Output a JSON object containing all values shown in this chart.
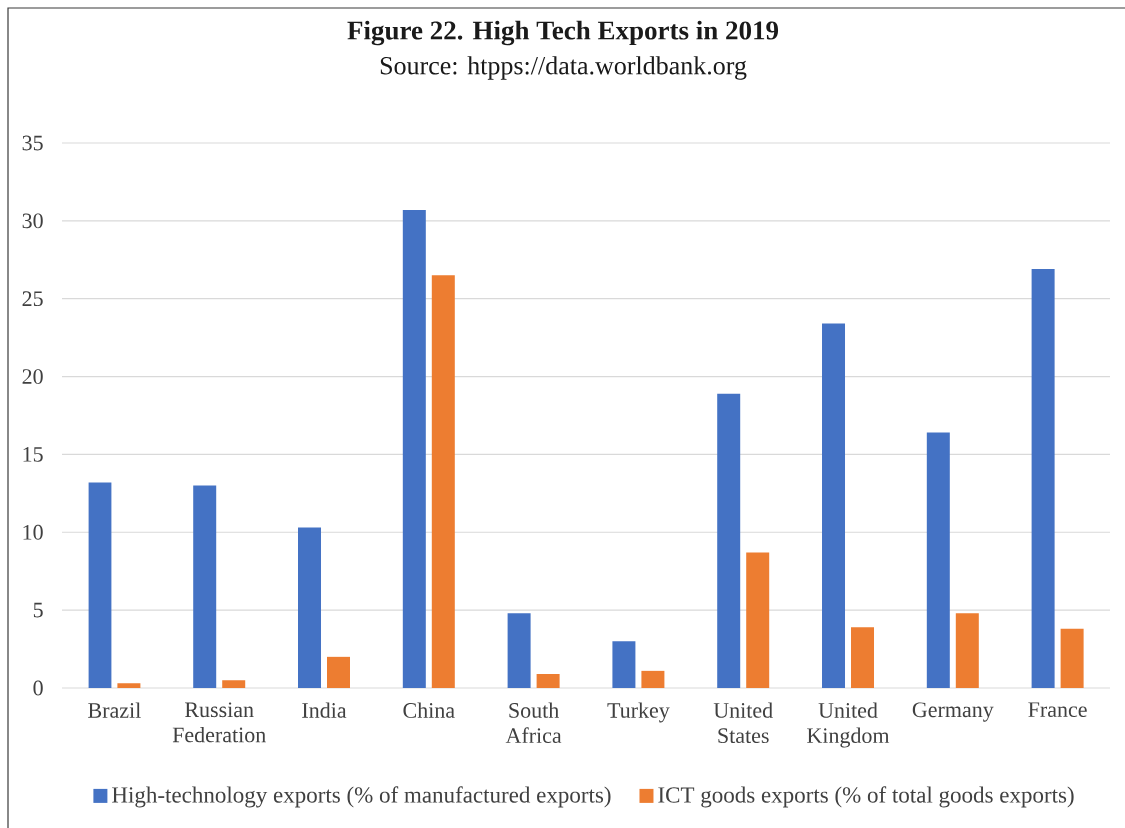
{
  "chart_data": {
    "type": "bar",
    "title": "Figure 22. High Tech Exports in 2019",
    "annotations": [
      "Source: htpps://data.worldbank.org"
    ],
    "categories": [
      "Brazil",
      "Russian Federation",
      "India",
      "China",
      "South Africa",
      "Turkey",
      "United States",
      "United Kingdom",
      "Germany",
      "France"
    ],
    "series": [
      {
        "name": "High-technology exports (% of manufactured exports)",
        "color": "#4472c4",
        "values": [
          13.2,
          13.0,
          10.3,
          30.7,
          4.8,
          3.0,
          18.9,
          23.4,
          16.4,
          26.9
        ]
      },
      {
        "name": "ICT goods exports (% of total goods exports)",
        "color": "#ed7d31",
        "values": [
          0.3,
          0.5,
          2.0,
          26.5,
          0.9,
          1.1,
          8.7,
          3.9,
          4.8,
          3.8
        ]
      }
    ],
    "ylim": [
      0,
      35
    ],
    "yticks": [
      0,
      5,
      10,
      15,
      20,
      25,
      30,
      35
    ],
    "grid": "y",
    "legend": "bottom"
  }
}
